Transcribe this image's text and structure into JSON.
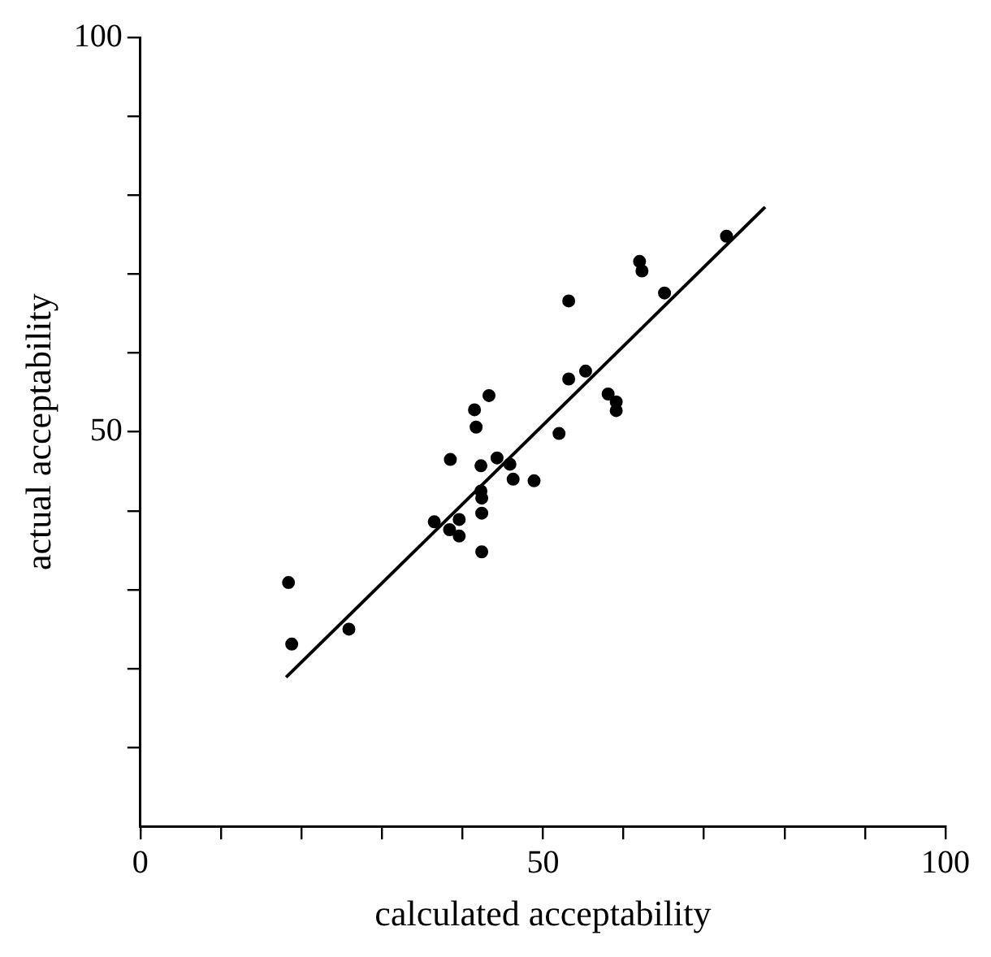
{
  "chart_data": {
    "type": "scatter",
    "xlabel": "calculated acceptability",
    "ylabel": "actual acceptability",
    "xlim": [
      0,
      100
    ],
    "ylim": [
      0,
      100
    ],
    "xticks": [
      0,
      {
        "value": 10,
        "label": null
      },
      {
        "value": 20,
        "label": null
      },
      {
        "value": 30,
        "label": null
      },
      {
        "value": 40,
        "label": null
      },
      50,
      {
        "value": 60,
        "label": null
      },
      {
        "value": 70,
        "label": null
      },
      {
        "value": 80,
        "label": null
      },
      {
        "value": 90,
        "label": null
      },
      100
    ],
    "yticks": [
      {
        "value": 10,
        "label": null
      },
      {
        "value": 20,
        "label": null
      },
      {
        "value": 30,
        "label": null
      },
      {
        "value": 40,
        "label": null
      },
      50,
      {
        "value": 60,
        "label": null
      },
      {
        "value": 70,
        "label": null
      },
      {
        "value": 80,
        "label": null
      },
      {
        "value": 90,
        "label": null
      },
      100
    ],
    "grid": false,
    "legend": false,
    "marker": "circle",
    "series": [
      {
        "color": "#000000",
        "x": [
          18.4,
          18.8,
          25.9,
          36.5,
          38.4,
          38.5,
          39.6,
          39.6,
          41.5,
          41.7,
          42.3,
          42.3,
          42.4,
          42.4,
          42.4,
          43.3,
          44.3,
          45.9,
          46.3,
          48.9,
          52.0,
          53.2,
          53.2,
          55.3,
          58.1,
          59.1,
          59.1,
          62.0,
          62.3,
          65.1,
          72.8
        ],
        "values": [
          30.9,
          23.1,
          25.0,
          38.6,
          37.6,
          46.5,
          38.9,
          36.8,
          52.8,
          50.6,
          45.7,
          42.5,
          41.6,
          39.7,
          34.8,
          54.6,
          46.7,
          45.9,
          44.0,
          43.8,
          49.8,
          66.6,
          56.7,
          57.7,
          54.8,
          53.8,
          52.7,
          71.6,
          70.4,
          67.6,
          74.8
        ]
      },
      {
        "type": "line",
        "color": "#000000",
        "x": [
          18.1,
          77.6
        ],
        "values": [
          18.9,
          78.5
        ],
        "line_style": "solid",
        "marker": "none"
      }
    ]
  }
}
